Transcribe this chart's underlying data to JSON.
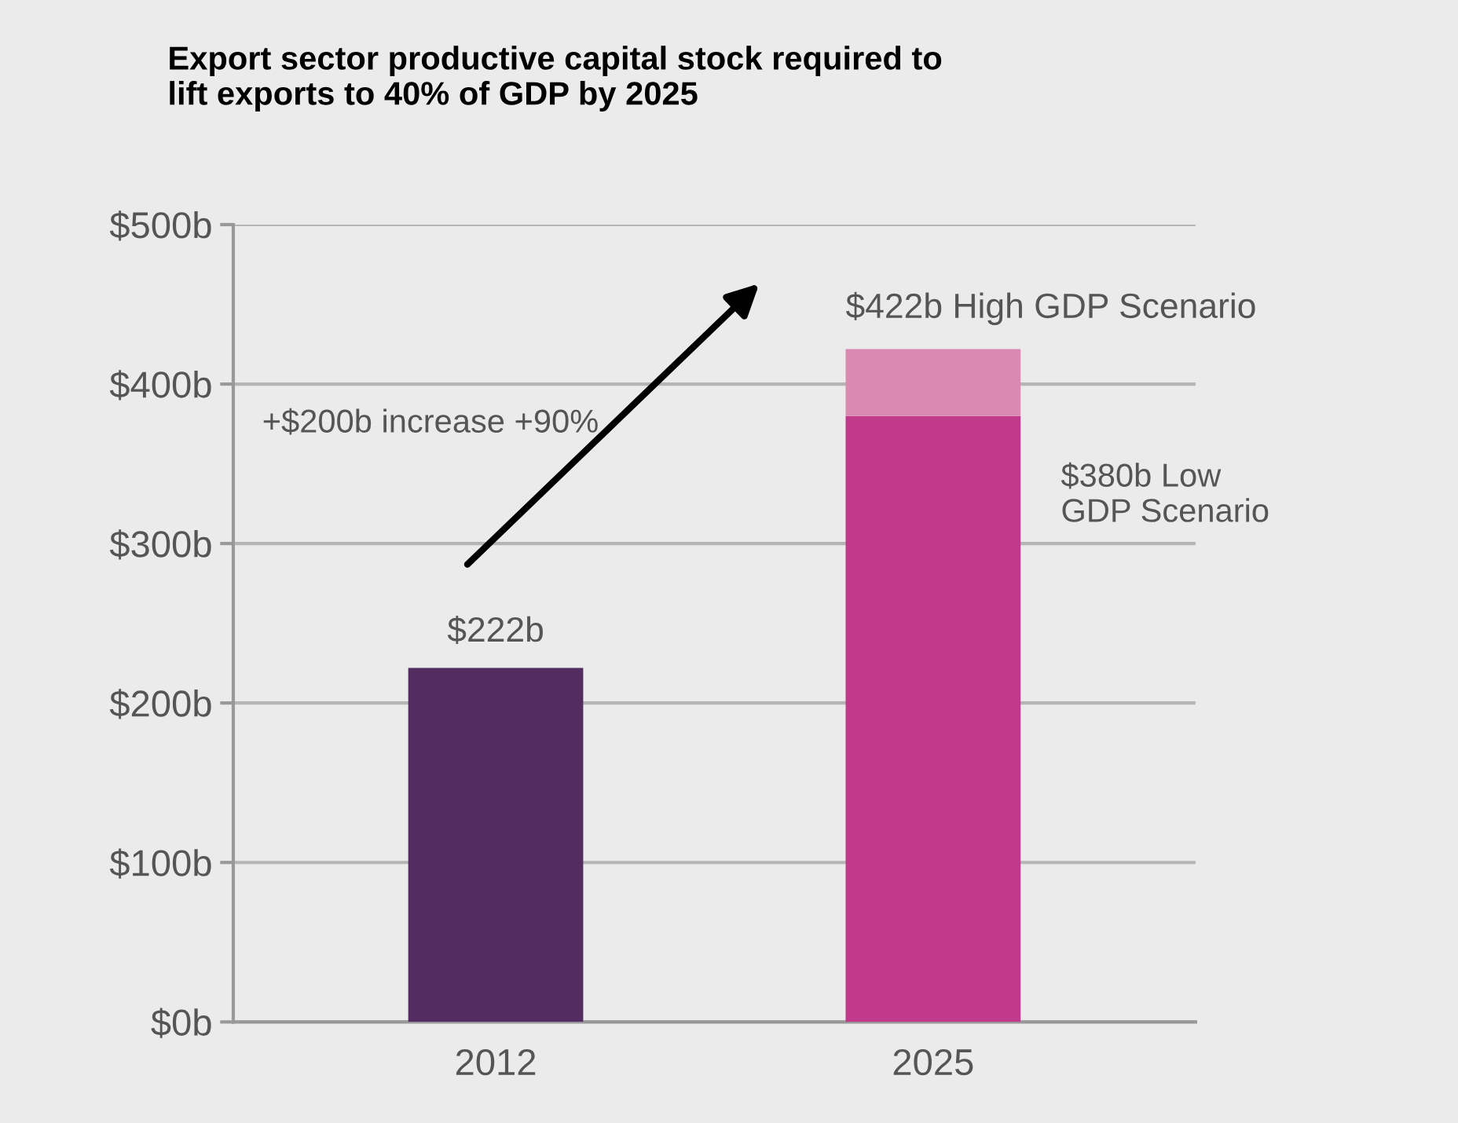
{
  "chart_data": {
    "type": "bar",
    "title": "Export sector productive capital stock required to\nlift exports to 40% of GDP by 2025",
    "categories": [
      "2012",
      "2025"
    ],
    "stacked": true,
    "series": [
      {
        "colors": [
          "#532d62",
          "#c0398a"
        ],
        "values": [
          222,
          380
        ]
      },
      {
        "color": "#da8ab0",
        "values": [
          null,
          42
        ]
      }
    ],
    "ylim": [
      0,
      500
    ],
    "yticks": [
      {
        "value": 0,
        "label": "$0b"
      },
      {
        "value": 100,
        "label": "$100b"
      },
      {
        "value": 200,
        "label": "$200b"
      },
      {
        "value": 300,
        "label": "$300b"
      },
      {
        "value": 400,
        "label": "$400b"
      },
      {
        "value": 500,
        "label": "$500b"
      }
    ],
    "grid": "y",
    "annotations": [
      {
        "text": "$222b",
        "x": "2012",
        "y": 222
      },
      {
        "text": "$422b High GDP Scenario",
        "x": "2025",
        "y": 422
      },
      "$380b Low\nGDP Scenario",
      "+$200b increase +90%"
    ]
  }
}
